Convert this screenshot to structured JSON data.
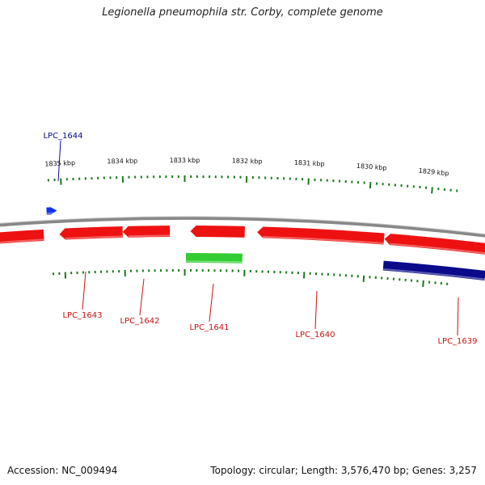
{
  "title": "Legionella pneumophila str. Corby, complete genome",
  "footer": {
    "accession": "Accession: NC_009494",
    "summary": "Topology: circular; Length: 3,576,470 bp; Genes: 3,257"
  },
  "colors": {
    "forward_gene": "#ee1111",
    "reverse_gene": "#0a0a8a",
    "rna_gene": "#33cc33",
    "other_gene": "#1133ee",
    "backbone": "#888888",
    "ticks": "#1a7a1a",
    "label_red": "#cc1111",
    "label_blue": "#0a0a99"
  },
  "ruler": {
    "unit": "kbp",
    "labels": [
      {
        "kbp": 1835,
        "text": "1835 kbp"
      },
      {
        "kbp": 1834,
        "text": "1834 kbp"
      },
      {
        "kbp": 1833,
        "text": "1833 kbp"
      },
      {
        "kbp": 1832,
        "text": "1832 kbp"
      },
      {
        "kbp": 1831,
        "text": "1831 kbp"
      },
      {
        "kbp": 1830,
        "text": "1830 kbp"
      },
      {
        "kbp": 1829,
        "text": "1829 kbp"
      }
    ]
  },
  "genes": [
    {
      "name": "LPC_1644",
      "track": "outer",
      "type": "other"
    },
    {
      "name": "LPC_1643",
      "track": "inner",
      "type": "forward"
    },
    {
      "name": "LPC_1642",
      "track": "inner",
      "type": "forward"
    },
    {
      "name": "LPC_1641",
      "track": "inner",
      "type": "forward"
    },
    {
      "name": "LPC_1641",
      "track": "rna",
      "type": "rna",
      "unlabeled": true
    },
    {
      "name": "LPC_1640",
      "track": "inner",
      "type": "forward"
    },
    {
      "name": "LPC_1639",
      "track": "inner",
      "type": "forward"
    },
    {
      "name": "LPC_1639",
      "track": "reverse",
      "type": "reverse",
      "unlabeled": true
    }
  ]
}
